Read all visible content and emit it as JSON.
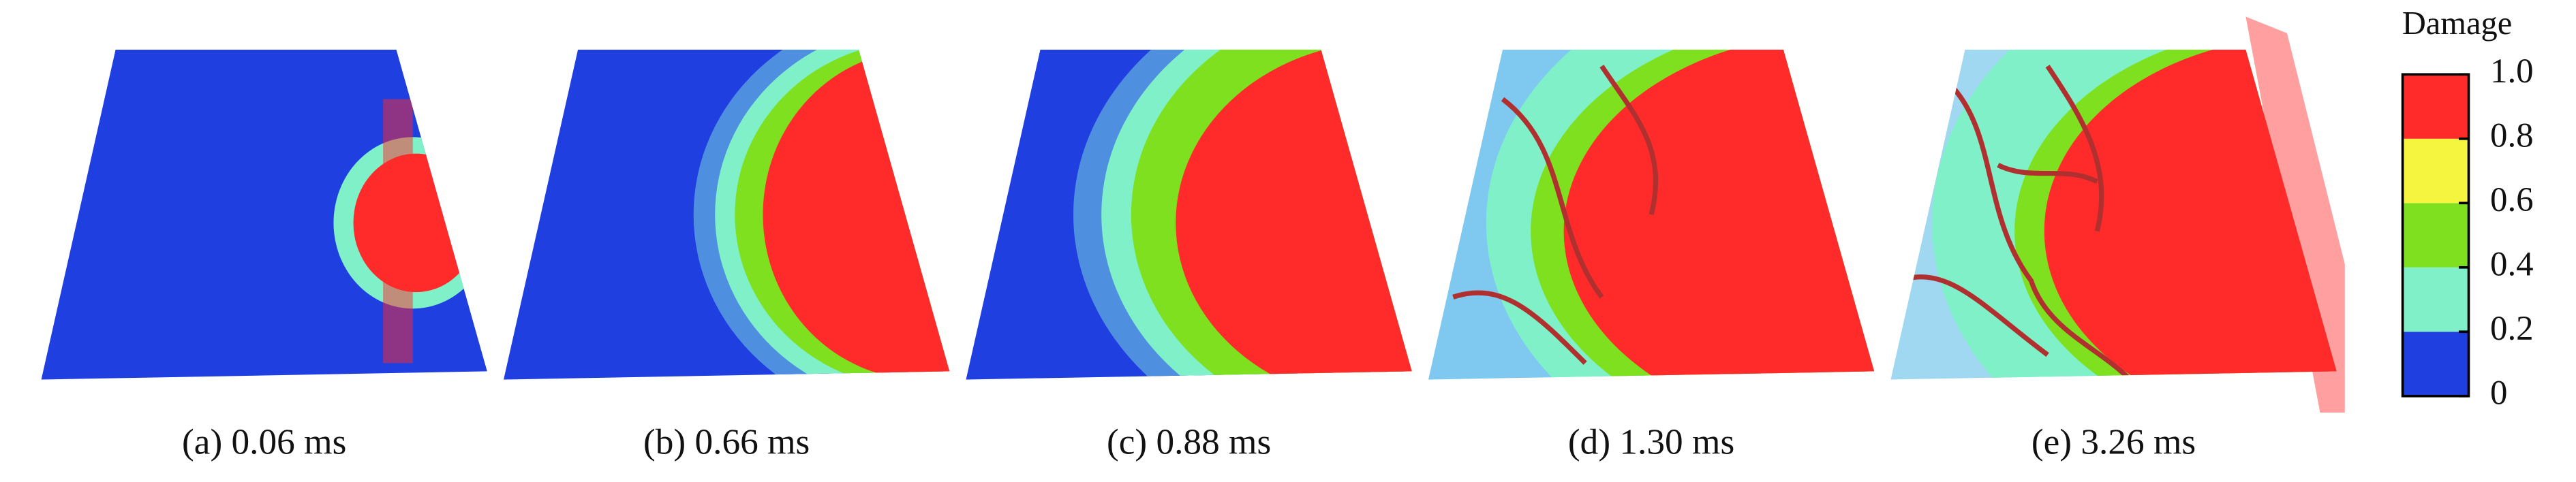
{
  "panels": [
    {
      "caption": "(a) 0.06 ms"
    },
    {
      "caption": "(b) 0.66 ms"
    },
    {
      "caption": "(c) 0.88 ms"
    },
    {
      "caption": "(d) 1.30 ms"
    },
    {
      "caption": "(e) 3.26 ms"
    }
  ],
  "colorbar": {
    "title": "Damage",
    "lim": [
      0,
      1
    ],
    "ticks": [
      0,
      0.2,
      0.4,
      0.6,
      0.8,
      {
        "value": 1,
        "label": "1.0"
      }
    ],
    "colors": [
      "#1f3fe0",
      "#7ff0c8",
      "#7fe020",
      "#f5f540",
      "#ff2a2a"
    ]
  }
}
